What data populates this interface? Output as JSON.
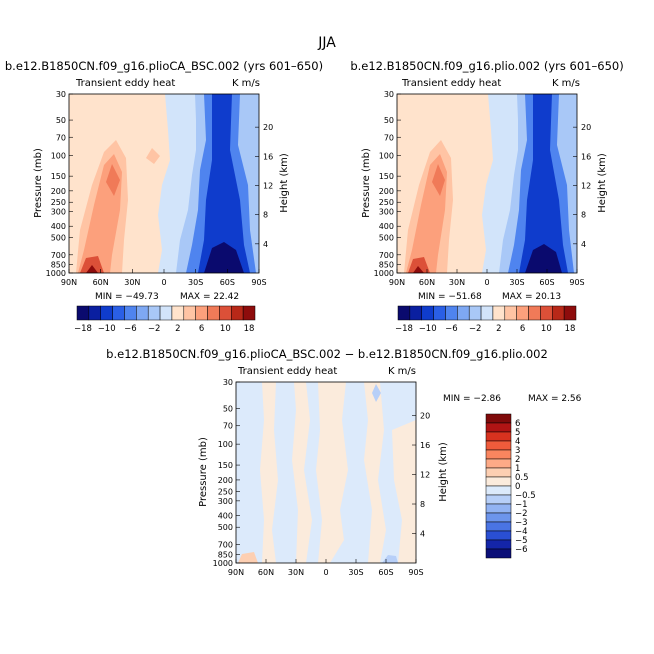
{
  "figure": {
    "main_title": "JJA"
  },
  "chart_data": [
    {
      "type": "heatmap",
      "id": "panel-a",
      "title": "b.e12.B1850CN.f09_g16.plioCA_BSC.002 (yrs 601–650)",
      "left_string": "Transient eddy heat",
      "right_string": "K m/s",
      "x_ticks": [
        "90N",
        "60N",
        "30N",
        "0",
        "30S",
        "60S",
        "90S"
      ],
      "y_ticks_left": [
        "30",
        "50",
        "70",
        "100",
        "150",
        "200",
        "250",
        "300",
        "400",
        "500",
        "700",
        "850",
        "1000"
      ],
      "y_ticks_right": [
        "20",
        "16",
        "12",
        "8",
        "4"
      ],
      "ylabel_left": "Pressure (mb)",
      "ylabel_right": "Height (km)",
      "min_label": "MIN = −49.73",
      "max_label": "MAX =  22.42",
      "min": -49.73,
      "max": 22.42,
      "colorbar_labels": [
        "−18",
        "−10",
        "−6",
        "−2",
        "2",
        "6",
        "10",
        "18"
      ]
    },
    {
      "type": "heatmap",
      "id": "panel-b",
      "title": "b.e12.B1850CN.f09_g16.plio.002 (yrs 601–650)",
      "left_string": "Transient eddy heat",
      "right_string": "K m/s",
      "x_ticks": [
        "90N",
        "60N",
        "30N",
        "0",
        "30S",
        "60S",
        "90S"
      ],
      "y_ticks_left": [
        "30",
        "50",
        "70",
        "100",
        "150",
        "200",
        "250",
        "300",
        "400",
        "500",
        "700",
        "850",
        "1000"
      ],
      "y_ticks_right": [
        "20",
        "16",
        "12",
        "8",
        "4"
      ],
      "ylabel_left": "Pressure (mb)",
      "ylabel_right": "Height (km)",
      "min_label": "MIN = −51.68",
      "max_label": "MAX =  20.13",
      "min": -51.68,
      "max": 20.13,
      "colorbar_labels": [
        "−18",
        "−10",
        "−6",
        "−2",
        "2",
        "6",
        "10",
        "18"
      ]
    },
    {
      "type": "heatmap",
      "id": "panel-diff",
      "title": "b.e12.B1850CN.f09_g16.plioCA_BSC.002 − b.e12.B1850CN.f09_g16.plio.002",
      "left_string": "Transient eddy heat",
      "right_string": "K m/s",
      "x_ticks": [
        "90N",
        "60N",
        "30N",
        "0",
        "30S",
        "60S",
        "90S"
      ],
      "y_ticks_left": [
        "30",
        "50",
        "70",
        "100",
        "150",
        "200",
        "250",
        "300",
        "400",
        "500",
        "700",
        "850",
        "1000"
      ],
      "y_ticks_right": [
        "20",
        "16",
        "12",
        "8",
        "4"
      ],
      "ylabel_left": "Pressure (mb)",
      "ylabel_right": "Height (km)",
      "min_label": "MIN =  −2.86",
      "max_label": "MAX =   2.56",
      "min": -2.86,
      "max": 2.56,
      "colorbar_labels": [
        "6",
        "5",
        "4",
        "3",
        "2",
        "1",
        "0.5",
        "0",
        "−0.5",
        "−1",
        "−2",
        "−3",
        "−4",
        "−5",
        "−6"
      ]
    }
  ],
  "colors": {
    "top_colorbar": [
      "#0a0a6e",
      "#0a1fa0",
      "#0f3ccc",
      "#2a5fe6",
      "#4f84ef",
      "#7ea8f3",
      "#a9c8f7",
      "#d2e4fa",
      "#ffe3cc",
      "#ffc4a4",
      "#fca07c",
      "#f07a58",
      "#dc5038",
      "#b82818",
      "#8e0c0c"
    ],
    "diff_colorbar": [
      "#7f0a0a",
      "#b01414",
      "#d8321f",
      "#ef5b3b",
      "#f9855f",
      "#fdaa87",
      "#fdcfb2",
      "#fbebdc",
      "#dceafb",
      "#b7cff8",
      "#92b3f3",
      "#6d95ec",
      "#4a74e3",
      "#2a4fd3",
      "#1425a8",
      "#0b0f78"
    ]
  }
}
